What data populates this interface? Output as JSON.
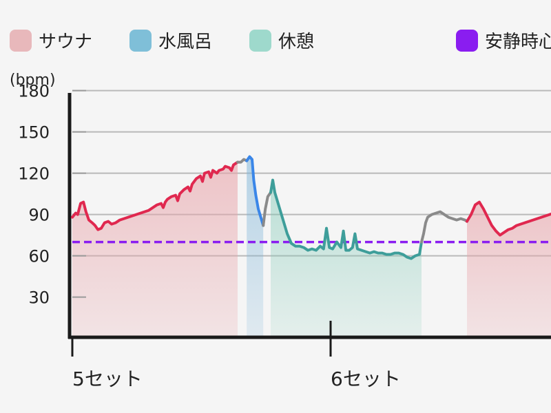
{
  "legend": {
    "items": [
      {
        "label": "サウナ",
        "color": "#e8b8bb"
      },
      {
        "label": "水風呂",
        "color": "#7fbfd8"
      },
      {
        "label": "休憩",
        "color": "#9ed9cc"
      },
      {
        "label": "安静時心拍",
        "color": "#8a1df0"
      }
    ]
  },
  "chart_data": {
    "type": "line",
    "ylabel": "(bpm)",
    "ylim": [
      10,
      190
    ],
    "yticks": [
      30,
      60,
      90,
      120,
      150,
      180
    ],
    "grid": true,
    "xticks": [
      {
        "label": "5セット",
        "x": 0
      },
      {
        "label": "6セット",
        "x": 62.5
      }
    ],
    "xlim": [
      0,
      116.5
    ],
    "resting_heart_rate": 70,
    "phase_colors": {
      "sauna": "#e0284f",
      "cold": "#3a86e8",
      "rest": "#3e9e9a",
      "transition": "#8a8a8a"
    },
    "segments": [
      {
        "phase": "sauna",
        "shaded": true,
        "points": [
          [
            0,
            88
          ],
          [
            0.8,
            91
          ],
          [
            1.3,
            90
          ],
          [
            2,
            98
          ],
          [
            2.7,
            99
          ],
          [
            3.3,
            92
          ],
          [
            4,
            86
          ],
          [
            4.8,
            84
          ],
          [
            5.5,
            82
          ],
          [
            6.2,
            79
          ],
          [
            7,
            80
          ],
          [
            7.8,
            84
          ],
          [
            8.7,
            85
          ],
          [
            9.5,
            83
          ],
          [
            10.5,
            84
          ],
          [
            11.5,
            86
          ],
          [
            12.5,
            87
          ],
          [
            13.5,
            88
          ],
          [
            14.5,
            89
          ],
          [
            15.5,
            90
          ],
          [
            16.5,
            91
          ],
          [
            17.5,
            92
          ],
          [
            18.5,
            93
          ],
          [
            19.5,
            95
          ],
          [
            20.5,
            97
          ],
          [
            21.5,
            98
          ],
          [
            22,
            95
          ],
          [
            22.5,
            99
          ],
          [
            23,
            101
          ],
          [
            24,
            103
          ],
          [
            25,
            104
          ],
          [
            25.5,
            100
          ],
          [
            26,
            105
          ],
          [
            27,
            108
          ],
          [
            28,
            110
          ],
          [
            28.5,
            107
          ],
          [
            29,
            112
          ],
          [
            30,
            116
          ],
          [
            31,
            118
          ],
          [
            31.5,
            114
          ],
          [
            32,
            120
          ],
          [
            33,
            121
          ],
          [
            33.5,
            117
          ],
          [
            34,
            122
          ],
          [
            35,
            120
          ],
          [
            35.5,
            122
          ],
          [
            36.5,
            123
          ],
          [
            37,
            125
          ],
          [
            38,
            124
          ],
          [
            38.5,
            122
          ],
          [
            39,
            126
          ],
          [
            40,
            128
          ]
        ]
      },
      {
        "phase": "transition",
        "shaded": false,
        "points": [
          [
            40,
            128
          ],
          [
            40.8,
            128
          ],
          [
            41.5,
            130
          ],
          [
            42.2,
            129
          ]
        ]
      },
      {
        "phase": "cold",
        "shaded": true,
        "points": [
          [
            42.2,
            129
          ],
          [
            42.9,
            132
          ],
          [
            43.5,
            130
          ],
          [
            43.9,
            115
          ],
          [
            44.4,
            104
          ],
          [
            45,
            94
          ],
          [
            45.6,
            88
          ],
          [
            46.2,
            82
          ]
        ]
      },
      {
        "phase": "transition",
        "shaded": false,
        "points": [
          [
            46.2,
            82
          ],
          [
            46.7,
            94
          ],
          [
            47.3,
            103
          ],
          [
            48,
            106
          ]
        ]
      },
      {
        "phase": "rest",
        "shaded": true,
        "points": [
          [
            48,
            106
          ],
          [
            48.5,
            115
          ],
          [
            49,
            106
          ],
          [
            50,
            96
          ],
          [
            51,
            86
          ],
          [
            52,
            76
          ],
          [
            53,
            69
          ],
          [
            54,
            67
          ],
          [
            55,
            67
          ],
          [
            56,
            66
          ],
          [
            57,
            64
          ],
          [
            58,
            65
          ],
          [
            59,
            64
          ],
          [
            60,
            67
          ],
          [
            60.8,
            65
          ],
          [
            61.5,
            80
          ],
          [
            62.2,
            66
          ],
          [
            63,
            65
          ],
          [
            64,
            70
          ],
          [
            65,
            66
          ],
          [
            65.6,
            78
          ],
          [
            66.2,
            64
          ],
          [
            67,
            64
          ],
          [
            67.8,
            66
          ],
          [
            68.4,
            76
          ],
          [
            69,
            65
          ],
          [
            70,
            64
          ],
          [
            71,
            63
          ],
          [
            72,
            62
          ],
          [
            73,
            63
          ],
          [
            74,
            62
          ],
          [
            75,
            62
          ],
          [
            76,
            61
          ],
          [
            77,
            61
          ],
          [
            78,
            62
          ],
          [
            79,
            62
          ],
          [
            80,
            61
          ],
          [
            81,
            59
          ],
          [
            82,
            58
          ],
          [
            83,
            60
          ],
          [
            84,
            61
          ],
          [
            84.5,
            70
          ]
        ]
      },
      {
        "phase": "transition",
        "shaded": false,
        "points": [
          [
            84.5,
            70
          ],
          [
            85,
            76
          ],
          [
            85.5,
            84
          ],
          [
            86,
            88
          ],
          [
            87,
            90
          ],
          [
            88,
            91
          ],
          [
            89,
            92
          ],
          [
            90,
            90
          ],
          [
            91,
            88
          ],
          [
            92,
            87
          ],
          [
            93,
            86
          ],
          [
            94,
            87
          ],
          [
            95,
            86
          ],
          [
            95.5,
            85
          ]
        ]
      },
      {
        "phase": "sauna",
        "shaded": true,
        "points": [
          [
            95.5,
            85
          ],
          [
            96.5,
            90
          ],
          [
            97.5,
            97
          ],
          [
            98.5,
            99
          ],
          [
            99.5,
            94
          ],
          [
            100.5,
            88
          ],
          [
            101.5,
            82
          ],
          [
            102.5,
            78
          ],
          [
            103.5,
            75
          ],
          [
            104.5,
            77
          ],
          [
            105.5,
            79
          ],
          [
            106.5,
            80
          ],
          [
            107.5,
            82
          ],
          [
            108.5,
            83
          ],
          [
            109.5,
            84
          ],
          [
            110.5,
            85
          ],
          [
            111.5,
            86
          ],
          [
            112.5,
            87
          ],
          [
            113.5,
            88
          ],
          [
            114.5,
            89
          ],
          [
            115.5,
            90
          ],
          [
            116.5,
            91
          ]
        ]
      }
    ]
  }
}
